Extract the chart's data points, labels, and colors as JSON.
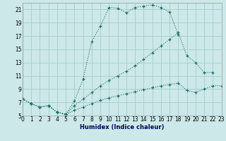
{
  "xlabel": "Humidex (Indice chaleur)",
  "background_color": "#cce8e8",
  "grid_color": "#a8cccc",
  "line_color": "#1a6e64",
  "xlim": [
    0,
    23
  ],
  "ylim": [
    5,
    22
  ],
  "xticks": [
    0,
    1,
    2,
    3,
    4,
    5,
    6,
    7,
    8,
    9,
    10,
    11,
    12,
    13,
    14,
    15,
    16,
    17,
    18,
    19,
    20,
    21,
    22,
    23
  ],
  "yticks": [
    5,
    7,
    9,
    11,
    13,
    15,
    17,
    19,
    21
  ],
  "series": [
    {
      "x": [
        0,
        1,
        2,
        3,
        4,
        5,
        6,
        7,
        8,
        9,
        10,
        11,
        12,
        13,
        14,
        15,
        16,
        17,
        18
      ],
      "y": [
        7.5,
        6.8,
        6.3,
        6.5,
        5.5,
        5.2,
        7.2,
        10.5,
        16.2,
        18.5,
        21.3,
        21.2,
        20.5,
        21.3,
        21.5,
        21.7,
        21.3,
        20.6,
        17.2
      ]
    },
    {
      "x": [
        0,
        1,
        2,
        3,
        4,
        5,
        6,
        7,
        8,
        9,
        10,
        11,
        12,
        13,
        14,
        15,
        16,
        17,
        18,
        19,
        20,
        21,
        22
      ],
      "y": [
        7.5,
        6.8,
        6.3,
        6.5,
        5.5,
        5.2,
        6.5,
        7.5,
        8.5,
        9.5,
        10.3,
        11.0,
        11.7,
        12.5,
        13.5,
        14.5,
        15.5,
        16.5,
        17.5,
        14.0,
        13.0,
        11.5,
        11.5
      ]
    },
    {
      "x": [
        0,
        1,
        2,
        3,
        4,
        5,
        6,
        7,
        8,
        9,
        10,
        11,
        12,
        13,
        14,
        15,
        16,
        17,
        18,
        19,
        20,
        21,
        22,
        23
      ],
      "y": [
        7.5,
        6.8,
        6.3,
        6.5,
        5.5,
        5.2,
        5.8,
        6.3,
        6.8,
        7.3,
        7.7,
        8.0,
        8.3,
        8.6,
        8.9,
        9.2,
        9.5,
        9.7,
        9.9,
        8.8,
        8.5,
        9.0,
        9.5,
        9.5
      ]
    }
  ]
}
